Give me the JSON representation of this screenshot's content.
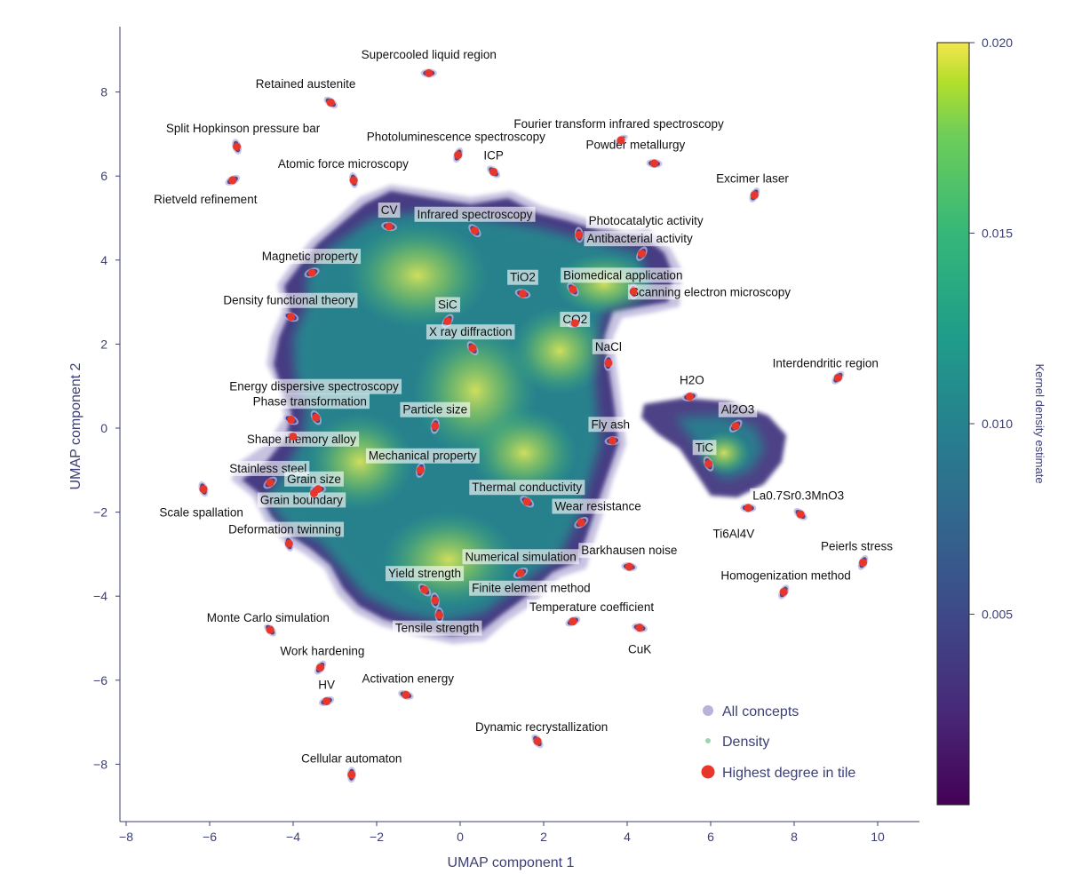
{
  "chart_data": {
    "type": "scatter",
    "xlabel": "UMAP component 1",
    "ylabel": "UMAP component 2",
    "xlim": [
      -8.2,
      11.0
    ],
    "ylim": [
      -9.3,
      9.6
    ],
    "xticks": [
      -8,
      -6,
      -4,
      -2,
      0,
      2,
      4,
      6,
      8,
      10
    ],
    "yticks": [
      -8,
      -6,
      -4,
      -2,
      0,
      2,
      4,
      6,
      8
    ],
    "colorbar": {
      "title": "Kernel density estimate",
      "range": [
        0.0,
        0.02
      ],
      "ticks": [
        "0.005",
        "0.010",
        "0.015",
        "0.020"
      ],
      "tick_values": [
        0.005,
        0.01,
        0.015,
        0.02
      ]
    },
    "legend": {
      "position": "bottom-right",
      "entries": [
        "All concepts",
        "Density",
        "Highest degree in tile"
      ]
    },
    "colors": {
      "concepts": "#b9b3d9",
      "cluster_edge": "#3b2f7a",
      "density_mark": "#9fd3b4",
      "highlight": "#e8362b",
      "axis": "#3b3f73"
    },
    "density_peaks": [
      {
        "x": -2.4,
        "y": -0.8,
        "density": 0.02
      },
      {
        "x": 0.3,
        "y": 0.9,
        "density": 0.019
      },
      {
        "x": -1.0,
        "y": 3.6,
        "density": 0.018
      },
      {
        "x": 2.4,
        "y": 1.8,
        "density": 0.018
      },
      {
        "x": -0.2,
        "y": -3.1,
        "density": 0.017
      },
      {
        "x": 1.5,
        "y": -0.9,
        "density": 0.016
      },
      {
        "x": 3.2,
        "y": 3.1,
        "density": 0.015
      },
      {
        "x": 6.0,
        "y": -0.6,
        "density": 0.015
      }
    ],
    "points": [
      {
        "label": "Supercooled liquid region",
        "x": -0.75,
        "y": 8.45,
        "lx": -0.75,
        "ly": 8.9,
        "anchor": "middle"
      },
      {
        "label": "Retained austenite",
        "x": -3.1,
        "y": 7.75,
        "lx": -3.7,
        "ly": 8.2,
        "anchor": "middle"
      },
      {
        "label": "Split Hopkinson pressure bar",
        "x": -5.35,
        "y": 6.7,
        "lx": -5.2,
        "ly": 7.15,
        "anchor": "middle"
      },
      {
        "label": "Photoluminescence spectroscopy",
        "x": -0.05,
        "y": 6.5,
        "lx": -0.1,
        "ly": 6.95,
        "anchor": "middle"
      },
      {
        "label": "Fourier transform infrared spectroscopy",
        "x": 3.85,
        "y": 6.85,
        "lx": 3.8,
        "ly": 7.25,
        "anchor": "middle"
      },
      {
        "label": "Powder metallurgy",
        "x": 4.65,
        "y": 6.3,
        "lx": 4.2,
        "ly": 6.75,
        "anchor": "middle"
      },
      {
        "label": "ICP",
        "x": 0.8,
        "y": 6.1,
        "lx": 0.8,
        "ly": 6.5,
        "anchor": "middle"
      },
      {
        "label": "Atomic force microscopy",
        "x": -2.55,
        "y": 5.9,
        "lx": -2.8,
        "ly": 6.3,
        "anchor": "middle"
      },
      {
        "label": "Excimer laser",
        "x": 7.05,
        "y": 5.55,
        "lx": 7.0,
        "ly": 5.95,
        "anchor": "middle"
      },
      {
        "label": "Rietveld refinement",
        "x": -5.45,
        "y": 5.9,
        "lx": -6.1,
        "ly": 5.45,
        "anchor": "middle"
      },
      {
        "label": "CV",
        "x": -1.7,
        "y": 4.8,
        "lx": -1.7,
        "ly": 5.2,
        "anchor": "middle"
      },
      {
        "label": "Infrared spectroscopy",
        "x": 0.35,
        "y": 4.7,
        "lx": 0.35,
        "ly": 5.1,
        "anchor": "middle"
      },
      {
        "label": "Photocatalytic activity",
        "x": 2.85,
        "y": 4.6,
        "lx": 4.45,
        "ly": 4.95,
        "anchor": "middle"
      },
      {
        "label": "Antibacterial activity",
        "x": 4.35,
        "y": 4.15,
        "lx": 4.3,
        "ly": 4.52,
        "anchor": "middle"
      },
      {
        "label": "Magnetic property",
        "x": -3.55,
        "y": 3.7,
        "lx": -3.6,
        "ly": 4.1,
        "anchor": "middle"
      },
      {
        "label": "TiO2",
        "x": 1.5,
        "y": 3.2,
        "lx": 1.5,
        "ly": 3.6,
        "anchor": "middle"
      },
      {
        "label": "Biomedical application",
        "x": 2.7,
        "y": 3.3,
        "lx": 3.9,
        "ly": 3.65,
        "anchor": "middle"
      },
      {
        "label": "Scanning electron microscopy",
        "x": 4.15,
        "y": 3.25,
        "lx": 6.0,
        "ly": 3.25,
        "anchor": "middle"
      },
      {
        "label": "SiC",
        "x": -0.3,
        "y": 2.55,
        "lx": -0.3,
        "ly": 2.95,
        "anchor": "middle"
      },
      {
        "label": "CO2",
        "x": 2.75,
        "y": 2.5,
        "lx": 2.75,
        "ly": 2.6,
        "anchor": "middle"
      },
      {
        "label": "Density functional theory",
        "x": -4.05,
        "y": 2.65,
        "lx": -4.1,
        "ly": 3.05,
        "anchor": "middle"
      },
      {
        "label": "X ray diffraction",
        "x": 0.3,
        "y": 1.9,
        "lx": 0.25,
        "ly": 2.3,
        "anchor": "middle"
      },
      {
        "label": "NaCl",
        "x": 3.55,
        "y": 1.55,
        "lx": 3.55,
        "ly": 1.95,
        "anchor": "middle"
      },
      {
        "label": "Interdendritic region",
        "x": 9.05,
        "y": 1.2,
        "lx": 8.75,
        "ly": 1.55,
        "anchor": "middle"
      },
      {
        "label": "H2O",
        "x": 5.5,
        "y": 0.75,
        "lx": 5.55,
        "ly": 1.15,
        "anchor": "middle"
      },
      {
        "label": "Energy dispersive spectroscopy",
        "x": -4.05,
        "y": 0.2,
        "lx": -3.5,
        "ly": 1.0,
        "anchor": "middle"
      },
      {
        "label": "Phase transformation",
        "x": -3.45,
        "y": 0.25,
        "lx": -3.6,
        "ly": 0.65,
        "anchor": "middle"
      },
      {
        "label": "Particle size",
        "x": -0.6,
        "y": 0.05,
        "lx": -0.6,
        "ly": 0.45,
        "anchor": "middle"
      },
      {
        "label": "Al2O3",
        "x": 6.6,
        "y": 0.05,
        "lx": 6.65,
        "ly": 0.45,
        "anchor": "middle"
      },
      {
        "label": "Fly ash",
        "x": 3.65,
        "y": -0.3,
        "lx": 3.6,
        "ly": 0.1,
        "anchor": "middle"
      },
      {
        "label": "Shape memory alloy",
        "x": -4.0,
        "y": -0.2,
        "lx": -3.8,
        "ly": -0.25,
        "anchor": "middle"
      },
      {
        "label": "TiC",
        "x": 5.95,
        "y": -0.85,
        "lx": 5.85,
        "ly": -0.45,
        "anchor": "middle"
      },
      {
        "label": "Mechanical property",
        "x": -0.95,
        "y": -1.0,
        "lx": -0.9,
        "ly": -0.65,
        "anchor": "middle"
      },
      {
        "label": "Stainless steel",
        "x": -4.55,
        "y": -1.3,
        "lx": -4.6,
        "ly": -0.95,
        "anchor": "middle"
      },
      {
        "label": "Grain size",
        "x": -3.4,
        "y": -1.45,
        "lx": -3.5,
        "ly": -1.2,
        "anchor": "middle"
      },
      {
        "label": "Thermal conductivity",
        "x": 1.6,
        "y": -1.75,
        "lx": 1.6,
        "ly": -1.4,
        "anchor": "middle"
      },
      {
        "label": "Scale spallation",
        "x": -6.15,
        "y": -1.45,
        "lx": -6.2,
        "ly": -2.0,
        "anchor": "middle"
      },
      {
        "label": "Grain boundary",
        "x": -3.5,
        "y": -1.55,
        "lx": -3.8,
        "ly": -1.7,
        "anchor": "middle"
      },
      {
        "label": "Wear resistance",
        "x": 2.9,
        "y": -2.25,
        "lx": 3.3,
        "ly": -1.85,
        "anchor": "middle"
      },
      {
        "label": "La0.7Sr0.3MnO3",
        "x": 6.9,
        "y": -1.9,
        "lx": 8.1,
        "ly": -1.6,
        "anchor": "middle"
      },
      {
        "label": "Ti6Al4V",
        "x": 8.15,
        "y": -2.05,
        "lx": 6.55,
        "ly": -2.5,
        "anchor": "middle"
      },
      {
        "label": "Deformation twinning",
        "x": -4.1,
        "y": -2.75,
        "lx": -4.2,
        "ly": -2.4,
        "anchor": "middle"
      },
      {
        "label": "Peierls stress",
        "x": 9.65,
        "y": -3.2,
        "lx": 9.5,
        "ly": -2.8,
        "anchor": "middle"
      },
      {
        "label": "Numerical simulation",
        "x": 1.45,
        "y": -3.45,
        "lx": 1.45,
        "ly": -3.05,
        "anchor": "middle"
      },
      {
        "label": "Barkhausen noise",
        "x": 4.05,
        "y": -3.3,
        "lx": 4.05,
        "ly": -2.9,
        "anchor": "middle"
      },
      {
        "label": "Yield strength",
        "x": -0.85,
        "y": -3.85,
        "lx": -0.85,
        "ly": -3.45,
        "anchor": "middle"
      },
      {
        "label": "Finite element method",
        "x": -0.6,
        "y": -4.1,
        "lx": 1.7,
        "ly": -3.8,
        "anchor": "middle"
      },
      {
        "label": "Homogenization method",
        "x": 7.75,
        "y": -3.9,
        "lx": 7.8,
        "ly": -3.5,
        "anchor": "middle"
      },
      {
        "label": "Temperature coefficient",
        "x": 2.7,
        "y": -4.6,
        "lx": 3.15,
        "ly": -4.25,
        "anchor": "middle"
      },
      {
        "label": "CuK",
        "x": 4.3,
        "y": -4.75,
        "lx": 4.3,
        "ly": -5.25,
        "anchor": "middle"
      },
      {
        "label": "Monte Carlo simulation",
        "x": -4.55,
        "y": -4.8,
        "lx": -4.6,
        "ly": -4.5,
        "anchor": "middle"
      },
      {
        "label": "Tensile strength",
        "x": -0.5,
        "y": -4.45,
        "lx": -0.55,
        "ly": -4.75,
        "anchor": "middle"
      },
      {
        "label": "Work hardening",
        "x": -3.35,
        "y": -5.7,
        "lx": -3.3,
        "ly": -5.3,
        "anchor": "middle"
      },
      {
        "label": "HV",
        "x": -3.2,
        "y": -6.5,
        "lx": -3.2,
        "ly": -6.1,
        "anchor": "middle"
      },
      {
        "label": "Activation energy",
        "x": -1.3,
        "y": -6.35,
        "lx": -1.25,
        "ly": -5.95,
        "anchor": "middle"
      },
      {
        "label": "Dynamic recrystallization",
        "x": 1.85,
        "y": -7.45,
        "lx": 1.95,
        "ly": -7.1,
        "anchor": "middle"
      },
      {
        "label": "Cellular automaton",
        "x": -2.6,
        "y": -8.25,
        "lx": -2.6,
        "ly": -7.85,
        "anchor": "middle"
      }
    ]
  }
}
